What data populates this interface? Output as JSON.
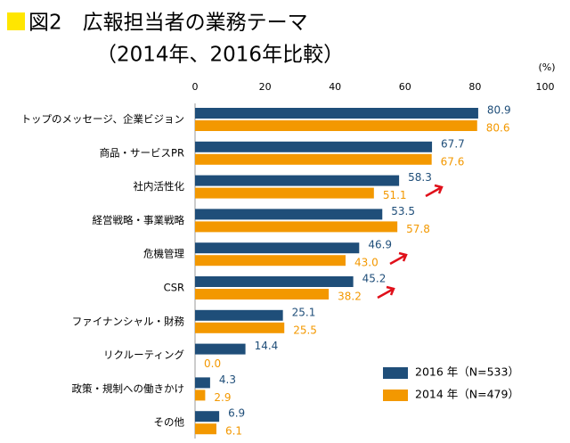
{
  "chart_data": {
    "type": "bar",
    "orientation": "horizontal",
    "title": "図2　広報担当者の業務テーマ",
    "subtitle": "（2014年、2016年比較）",
    "unit_label": "(%)",
    "categories": [
      "トップのメッセージ、企業ビジョン",
      "商品・サービスPR",
      "社内活性化",
      "経営戦略・事業戦略",
      "危機管理",
      "CSR",
      "ファイナンシャル・財務",
      "リクルーティング",
      "政策・規制への働きかけ",
      "その他"
    ],
    "series": [
      {
        "name": "2016 年（N=533）",
        "color": "#1f4e79",
        "values": [
          80.9,
          67.7,
          58.3,
          53.5,
          46.9,
          45.2,
          25.1,
          14.4,
          4.3,
          6.9
        ],
        "value_labels": [
          "80.9",
          "67.7",
          "58.3",
          "53.5",
          "46.9",
          "45.2",
          "25.1",
          "14.4",
          "4.3",
          "6.9"
        ]
      },
      {
        "name": "2014 年（N=479）",
        "color": "#f39800",
        "values": [
          80.6,
          67.6,
          51.1,
          57.8,
          43.0,
          38.2,
          25.5,
          0,
          2.9,
          6.1
        ],
        "value_labels": [
          "80.6",
          "67.6",
          "51.1",
          "57.8",
          "43.0",
          "38.2",
          "25.5",
          "0.0",
          "2.9",
          "6.1"
        ]
      }
    ],
    "xlim": [
      0,
      100
    ],
    "xticks": [
      0,
      20,
      40,
      60,
      80,
      100
    ]
  }
}
